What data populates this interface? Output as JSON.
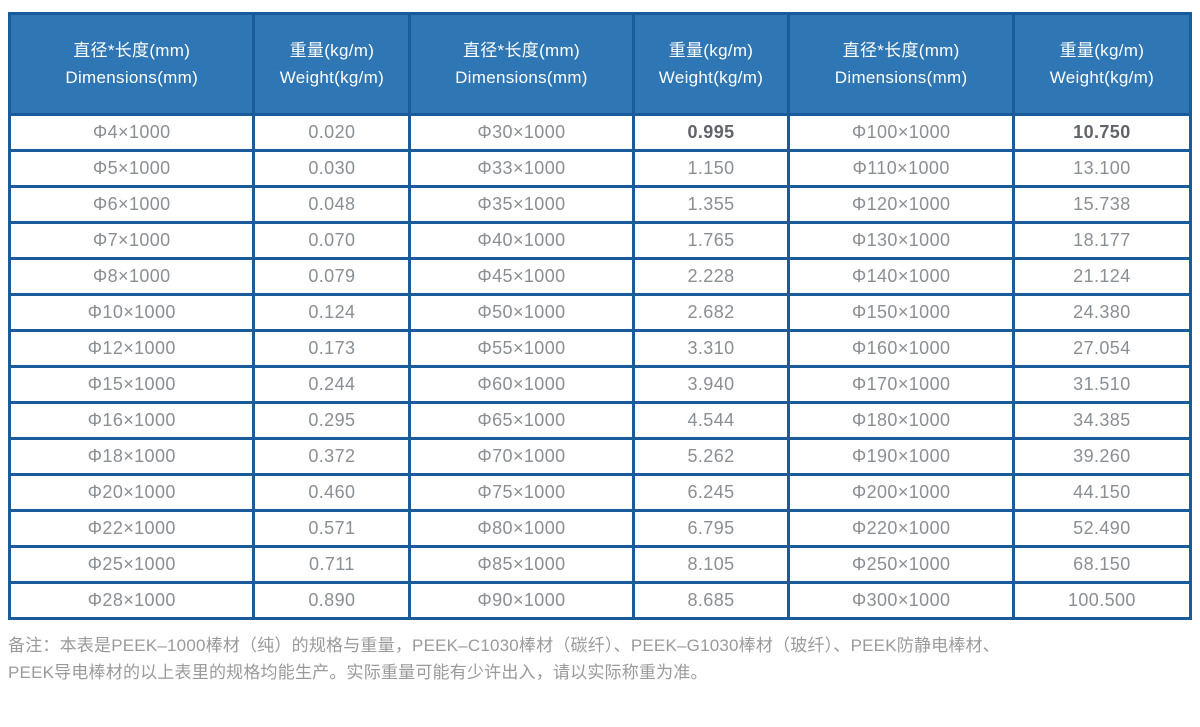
{
  "table": {
    "header": {
      "cells": [
        {
          "cn": "直径*长度(mm)",
          "en": "Dimensions(mm)"
        },
        {
          "cn": "重量(kg/m)",
          "en": "Weight(kg/m)"
        },
        {
          "cn": "直径*长度(mm)",
          "en": "Dimensions(mm)"
        },
        {
          "cn": "重量(kg/m)",
          "en": "Weight(kg/m)"
        },
        {
          "cn": "直径*长度(mm)",
          "en": "Dimensions(mm)"
        },
        {
          "cn": "重量(kg/m)",
          "en": "Weight(kg/m)"
        }
      ]
    },
    "rows": [
      [
        "Φ4×1000",
        "0.020",
        "Φ30×1000",
        "0.995",
        "Φ100×1000",
        "10.750"
      ],
      [
        "Φ5×1000",
        "0.030",
        "Φ33×1000",
        "1.150",
        "Φ110×1000",
        "13.100"
      ],
      [
        "Φ6×1000",
        "0.048",
        "Φ35×1000",
        "1.355",
        "Φ120×1000",
        "15.738"
      ],
      [
        "Φ7×1000",
        "0.070",
        "Φ40×1000",
        "1.765",
        "Φ130×1000",
        "18.177"
      ],
      [
        "Φ8×1000",
        "0.079",
        "Φ45×1000",
        "2.228",
        "Φ140×1000",
        "21.124"
      ],
      [
        "Φ10×1000",
        "0.124",
        "Φ50×1000",
        "2.682",
        "Φ150×1000",
        "24.380"
      ],
      [
        "Φ12×1000",
        "0.173",
        "Φ55×1000",
        "3.310",
        "Φ160×1000",
        "27.054"
      ],
      [
        "Φ15×1000",
        "0.244",
        "Φ60×1000",
        "3.940",
        "Φ170×1000",
        "31.510"
      ],
      [
        "Φ16×1000",
        "0.295",
        "Φ65×1000",
        "4.544",
        "Φ180×1000",
        "34.385"
      ],
      [
        "Φ18×1000",
        "0.372",
        "Φ70×1000",
        "5.262",
        "Φ190×1000",
        "39.260"
      ],
      [
        "Φ20×1000",
        "0.460",
        "Φ75×1000",
        "6.245",
        "Φ200×1000",
        "44.150"
      ],
      [
        "Φ22×1000",
        "0.571",
        "Φ80×1000",
        "6.795",
        "Φ220×1000",
        "52.490"
      ],
      [
        "Φ25×1000",
        "0.711",
        "Φ85×1000",
        "8.105",
        "Φ250×1000",
        "68.150"
      ],
      [
        "Φ28×1000",
        "0.890",
        "Φ90×1000",
        "8.685",
        "Φ300×1000",
        "100.500"
      ]
    ],
    "emphasized_cells": [
      [
        0,
        3
      ],
      [
        0,
        5
      ]
    ]
  },
  "note": {
    "lines": [
      "备注：本表是PEEK–1000棒材（纯）的规格与重量，PEEK–C1030棒材（碳纤）、PEEK–G1030棒材（玻纤）、PEEK防静电棒材、",
      "PEEK导电棒材的以上表里的规格均能生产。实际重量可能有少许出入，请以实际称重为准。"
    ]
  },
  "colors": {
    "header_bg": "#2E76B4",
    "border": "#1A5B9B",
    "header_text": "#FFFFFF",
    "body_text": "#8A8F94",
    "emphasis_text": "#60646A",
    "note_text": "#9A9A9A"
  }
}
